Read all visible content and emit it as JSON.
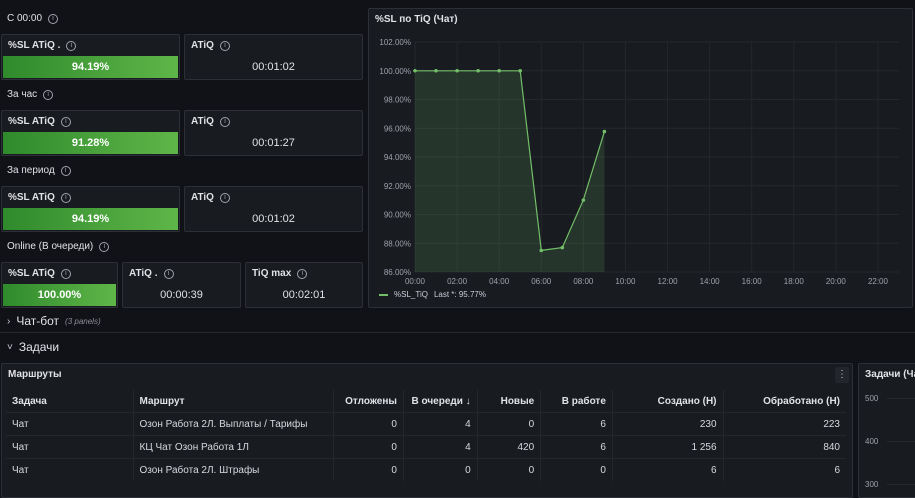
{
  "sections": {
    "s1": "С 00:00",
    "s2": "За час",
    "s3": "За период",
    "s4": "Online (В очереди)"
  },
  "stats": {
    "r1_sl_title": "%SL ATiQ .",
    "r1_sl_value": "94.19%",
    "r1_atiq_title": "ATiQ",
    "r1_atiq_value": "00:01:02",
    "r2_sl_title": "%SL ATiQ",
    "r2_sl_value": "91.28%",
    "r2_atiq_title": "ATiQ",
    "r2_atiq_value": "00:01:27",
    "r3_sl_title": "%SL ATiQ",
    "r3_sl_value": "94.19%",
    "r3_atiq_title": "ATiQ",
    "r3_atiq_value": "00:01:02",
    "r4_sl_title": "%SL ATiQ",
    "r4_sl_value": "100.00%",
    "r4_atiq_title": "ATiQ .",
    "r4_atiq_value": "00:00:39",
    "r4_tiq_title": "TiQ max",
    "r4_tiq_value": "00:02:01"
  },
  "chart_panel": {
    "title": "%SL по TiQ (Чат)",
    "legend_name": "%SL_TiQ",
    "legend_last": "Last *: 95.77%"
  },
  "chart_data": {
    "type": "area",
    "x": [
      "00:00",
      "01:00",
      "02:00",
      "03:00",
      "04:00",
      "05:00",
      "06:00",
      "07:00",
      "08:00",
      "09:00"
    ],
    "series": [
      {
        "name": "%SL_TiQ",
        "values": [
          100,
          100,
          100,
          100,
          100,
          100,
          87.5,
          87.7,
          91.0,
          95.77
        ]
      }
    ],
    "ylim": [
      86,
      102
    ],
    "yticks": [
      "86.00%",
      "88.00%",
      "90.00%",
      "92.00%",
      "94.00%",
      "96.00%",
      "98.00%",
      "100.00%",
      "102.00%"
    ],
    "xticks": [
      "00:00",
      "02:00",
      "04:00",
      "06:00",
      "08:00",
      "10:00",
      "12:00",
      "14:00",
      "16:00",
      "18:00",
      "20:00",
      "22:00"
    ],
    "xrange_hours": [
      0,
      23
    ],
    "color": "#73bf69",
    "grid": true
  },
  "rows": {
    "chatbot_label": "Чат-бот",
    "chatbot_count": "(3 panels)",
    "tasks_label": "Задачи"
  },
  "routes_panel": {
    "title": "Маршруты",
    "columns": [
      "Задача",
      "Маршрут",
      "Отложены",
      "В очереди ↓",
      "Новые",
      "В работе",
      "Создано (Н)",
      "Обработано (Н)"
    ],
    "rows": [
      [
        "Чат",
        "Озон Работа 2Л. Выплаты / Тарифы",
        "0",
        "4",
        "0",
        "6",
        "230",
        "223"
      ],
      [
        "Чат",
        "КЦ Чат Озон Работа 1Л",
        "0",
        "4",
        "420",
        "6",
        "1 256",
        "840"
      ],
      [
        "Чат",
        "Озон Работа 2Л. Штрафы",
        "0",
        "0",
        "0",
        "0",
        "6",
        "6"
      ]
    ]
  },
  "tasks_chart": {
    "title": "Задачи (Ча",
    "yticks": [
      "500",
      "400",
      "300"
    ]
  }
}
